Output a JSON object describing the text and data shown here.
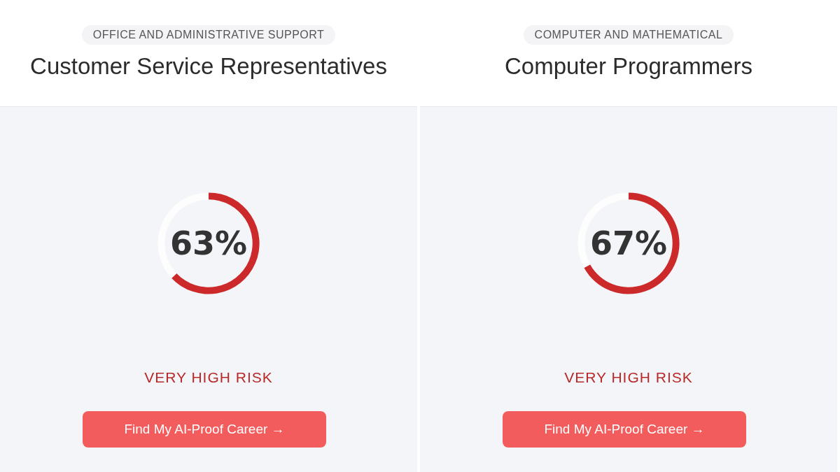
{
  "chart_data": [
    {
      "type": "donut",
      "subtitle": "OFFICE AND ADMINISTRATIVE SUPPORT",
      "title": "Customer Service Representatives",
      "categories": [
        null,
        null
      ],
      "values": [
        63,
        37
      ],
      "colors": [
        "#cc2a2a",
        "#fdfdfe"
      ],
      "value_labels": [
        "63%",
        null
      ],
      "annotations": [
        "VERY HIGH RISK",
        "Find My AI-Proof Career →"
      ]
    },
    {
      "type": "donut",
      "subtitle": "COMPUTER AND MATHEMATICAL",
      "title": "Computer Programmers",
      "categories": [
        null,
        null
      ],
      "values": [
        67,
        33
      ],
      "colors": [
        "#cc2a2a",
        "#fdfdfe"
      ],
      "value_labels": [
        "67%",
        null
      ],
      "annotations": [
        "VERY HIGH RISK",
        "Find My AI-Proof Career →"
      ]
    }
  ]
}
